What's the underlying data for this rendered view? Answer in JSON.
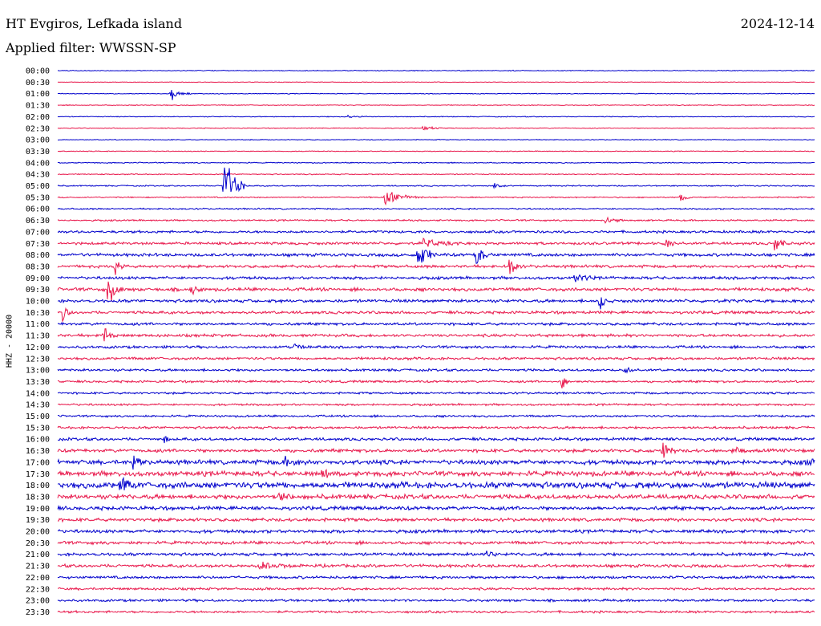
{
  "header": {
    "station": "HT Evgiros, Lefkada island",
    "date": "2024-12-14",
    "filter": "Applied filter: WWSSN-SP"
  },
  "chart_data": {
    "type": "line",
    "ylabel": "HHZ - 20000",
    "row_labels": [
      "00:00",
      "00:30",
      "01:00",
      "01:30",
      "02:00",
      "02:30",
      "03:00",
      "03:30",
      "04:00",
      "04:30",
      "05:00",
      "05:30",
      "06:00",
      "06:30",
      "07:00",
      "07:30",
      "08:00",
      "08:30",
      "09:00",
      "09:30",
      "10:00",
      "10:30",
      "11:00",
      "11:30",
      "12:00",
      "12:30",
      "13:00",
      "13:30",
      "14:00",
      "14:30",
      "15:00",
      "15:30",
      "16:00",
      "16:30",
      "17:00",
      "17:30",
      "18:00",
      "18:30",
      "19:00",
      "19:30",
      "20:00",
      "20:30",
      "21:00",
      "21:30",
      "22:00",
      "22:30",
      "23:00",
      "23:30"
    ],
    "row_colors": [
      "#0000cc",
      "#e8174b"
    ],
    "minutes_per_row": 30,
    "noise_levels": [
      0.4,
      0.3,
      0.4,
      0.4,
      0.4,
      0.4,
      0.4,
      0.4,
      0.5,
      0.5,
      0.6,
      0.6,
      0.7,
      0.8,
      1.2,
      1.3,
      1.5,
      1.4,
      1.4,
      1.6,
      1.5,
      1.4,
      1.3,
      1.4,
      1.3,
      1.3,
      1.2,
      1.1,
      1.0,
      1.0,
      1.0,
      1.2,
      1.4,
      1.6,
      2.2,
      2.4,
      3.0,
      2.2,
      1.8,
      1.6,
      1.6,
      1.5,
      1.5,
      1.5,
      1.3,
      1.2,
      1.2,
      1.1
    ],
    "events": [
      {
        "row": 2,
        "minute": 4.5,
        "amplitude": 10,
        "duration": 0.8
      },
      {
        "row": 4,
        "minute": 11.5,
        "amplitude": 2,
        "duration": 0.8
      },
      {
        "row": 5,
        "minute": 14.5,
        "amplitude": 4,
        "duration": 0.8
      },
      {
        "row": 10,
        "minute": 6.6,
        "amplitude": 60,
        "duration": 0.9
      },
      {
        "row": 10,
        "minute": 17.3,
        "amplitude": 6,
        "duration": 0.5
      },
      {
        "row": 11,
        "minute": 13.0,
        "amplitude": 12,
        "duration": 1.5
      },
      {
        "row": 11,
        "minute": 24.7,
        "amplitude": 10,
        "duration": 0.4
      },
      {
        "row": 13,
        "minute": 21.7,
        "amplitude": 7,
        "duration": 0.8
      },
      {
        "row": 15,
        "minute": 14.5,
        "amplitude": 8,
        "duration": 1.5
      },
      {
        "row": 15,
        "minute": 24.1,
        "amplitude": 10,
        "duration": 0.5
      },
      {
        "row": 15,
        "minute": 28.4,
        "amplitude": 15,
        "duration": 0.6
      },
      {
        "row": 16,
        "minute": 14.3,
        "amplitude": 28,
        "duration": 0.7
      },
      {
        "row": 16,
        "minute": 16.6,
        "amplitude": 18,
        "duration": 0.7
      },
      {
        "row": 17,
        "minute": 2.3,
        "amplitude": 15,
        "duration": 0.4
      },
      {
        "row": 17,
        "minute": 17.9,
        "amplitude": 22,
        "duration": 0.5
      },
      {
        "row": 18,
        "minute": 20.5,
        "amplitude": 12,
        "duration": 0.8
      },
      {
        "row": 19,
        "minute": 2.0,
        "amplitude": 28,
        "duration": 0.6
      },
      {
        "row": 19,
        "minute": 5.3,
        "amplitude": 10,
        "duration": 0.6
      },
      {
        "row": 20,
        "minute": 21.5,
        "amplitude": 20,
        "duration": 0.3
      },
      {
        "row": 21,
        "minute": 0.2,
        "amplitude": 14,
        "duration": 0.4
      },
      {
        "row": 23,
        "minute": 1.8,
        "amplitude": 16,
        "duration": 0.6
      },
      {
        "row": 24,
        "minute": 9.4,
        "amplitude": 5,
        "duration": 0.6
      },
      {
        "row": 27,
        "minute": 20.0,
        "amplitude": 26,
        "duration": 0.3
      },
      {
        "row": 26,
        "minute": 22.5,
        "amplitude": 10,
        "duration": 0.3
      },
      {
        "row": 32,
        "minute": 4.2,
        "amplitude": 5,
        "duration": 0.5
      },
      {
        "row": 33,
        "minute": 24.0,
        "amplitude": 18,
        "duration": 0.5
      },
      {
        "row": 33,
        "minute": 26.8,
        "amplitude": 12,
        "duration": 0.4
      },
      {
        "row": 34,
        "minute": 3.0,
        "amplitude": 12,
        "duration": 0.5
      },
      {
        "row": 34,
        "minute": 9.0,
        "amplitude": 10,
        "duration": 0.6
      },
      {
        "row": 34,
        "minute": 29.7,
        "amplitude": 20,
        "duration": 0.5
      },
      {
        "row": 35,
        "minute": 10.5,
        "amplitude": 8,
        "duration": 0.6
      },
      {
        "row": 36,
        "minute": 2.5,
        "amplitude": 12,
        "duration": 0.7
      },
      {
        "row": 37,
        "minute": 8.8,
        "amplitude": 8,
        "duration": 0.8
      },
      {
        "row": 42,
        "minute": 17.0,
        "amplitude": 6,
        "duration": 0.5
      },
      {
        "row": 43,
        "minute": 8.0,
        "amplitude": 5,
        "duration": 1.6
      }
    ]
  }
}
